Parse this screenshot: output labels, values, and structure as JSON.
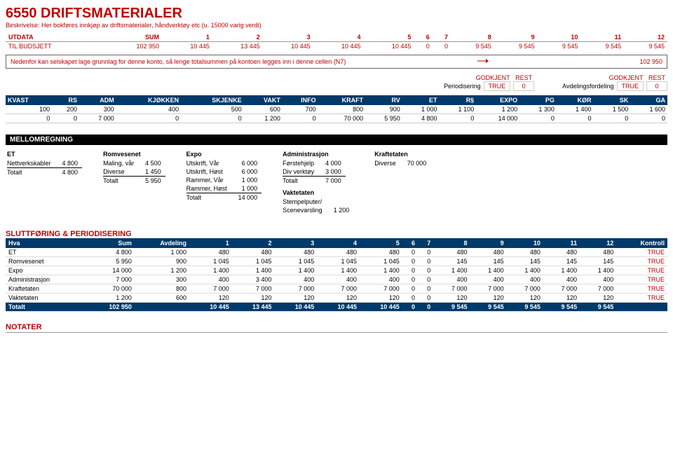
{
  "header": {
    "title": "6550 DRIFTSMATERIALER",
    "subtitle": "Beskrivelse: Her bokføres innkjøp av driftsmaterialer, håndverktøy etc (u. 15000 varig verdi)"
  },
  "utdata": {
    "heads": [
      "UTDATA",
      "SUM",
      "1",
      "2",
      "3",
      "4",
      "5",
      "6",
      "7",
      "8",
      "9",
      "10",
      "11",
      "12"
    ],
    "row_label": "TIL BUDSJETT",
    "cells": [
      "102 950",
      "10 445",
      "13 445",
      "10 445",
      "10 445",
      "10 445",
      "0",
      "0",
      "9 545",
      "9 545",
      "9 545",
      "9 545",
      "9 545"
    ]
  },
  "noteBox": {
    "text": "Nedenfor kan selskapet lage grunnlag for denne konto, så lenge totalsummen på kontoen legges inn i denne cellen (N7)",
    "value": "102 950"
  },
  "status": {
    "h1a": "GODKJENT",
    "h1b": "REST",
    "l1": "Periodisering",
    "v1a": "TRUE",
    "v1b": "0",
    "h2a": "GODKJENT",
    "h2b": "REST",
    "l2": "Avdelingsfordeling",
    "v2a": "TRUE",
    "v2b": "0"
  },
  "distTable": {
    "heads": [
      "KVAST",
      "RS",
      "ADM",
      "KJØKKEN",
      "SKJENKE",
      "VAKT",
      "INFO",
      "KRAFT",
      "RV",
      "ET",
      "R§",
      "EXPO",
      "PG",
      "KØR",
      "SK",
      "GA"
    ],
    "row1": [
      "100",
      "200",
      "300",
      "400",
      "500",
      "600",
      "700",
      "800",
      "900",
      "1 000",
      "1 100",
      "1 200",
      "1 300",
      "1 400",
      "1 500",
      "1 600"
    ],
    "row2": [
      "0",
      "0",
      "7 000",
      "0",
      "0",
      "1 200",
      "0",
      "70 000",
      "5 950",
      "4 800",
      "0",
      "14 000",
      "0",
      "0",
      "0",
      "0"
    ]
  },
  "mellom": {
    "title": "MELLOMREGNING",
    "cols": [
      {
        "head": "ET",
        "rows": [
          [
            "Nettverkskabler",
            "4 800"
          ]
        ],
        "total": [
          "Totalt",
          "4 800"
        ]
      },
      {
        "head": "Romvesenet",
        "rows": [
          [
            "Maling, vår",
            "4 500"
          ],
          [
            "Diverse",
            "1 450"
          ]
        ],
        "total": [
          "Totalt",
          "5 950"
        ]
      },
      {
        "head": "Expo",
        "rows": [
          [
            "Utskrift, Vår",
            "6 000"
          ],
          [
            "Utskrift, Høst",
            "6 000"
          ],
          [
            "Rammer, Vår",
            "1 000"
          ],
          [
            "Rammer, Høst",
            "1 000"
          ]
        ],
        "total": [
          "Totalt",
          "14 000"
        ]
      },
      {
        "head": "Administrasjon",
        "rows": [
          [
            "Førstehjelp",
            "4 000"
          ],
          [
            "Div verktøy",
            "3 000"
          ]
        ],
        "total": [
          "Totalt",
          "7 000"
        ],
        "extra_head": "Vaktetaten",
        "extra_rows": [
          [
            "Stempelputer/",
            ""
          ],
          [
            "Scenevarsling",
            "1 200"
          ]
        ]
      },
      {
        "head": "Kraftetaten",
        "rows": [
          [
            "Diverse",
            "70 000"
          ]
        ],
        "total": null
      }
    ]
  },
  "slutt": {
    "title": "SLUTTFØRING & PERIODISERING",
    "heads": [
      "Hva",
      "Sum",
      "Avdeling",
      "1",
      "2",
      "3",
      "4",
      "5",
      "6",
      "7",
      "8",
      "9",
      "10",
      "11",
      "12",
      "Kontroll"
    ],
    "rows": [
      [
        "ET",
        "4 800",
        "1 000",
        "480",
        "480",
        "480",
        "480",
        "480",
        "0",
        "0",
        "480",
        "480",
        "480",
        "480",
        "480",
        "TRUE"
      ],
      [
        "Romvesenet",
        "5 950",
        "900",
        "1 045",
        "1 045",
        "1 045",
        "1 045",
        "1 045",
        "0",
        "0",
        "145",
        "145",
        "145",
        "145",
        "145",
        "TRUE"
      ],
      [
        "Expo",
        "14 000",
        "1 200",
        "1 400",
        "1 400",
        "1 400",
        "1 400",
        "1 400",
        "0",
        "0",
        "1 400",
        "1 400",
        "1 400",
        "1 400",
        "1 400",
        "TRUE"
      ],
      [
        "Administrasjon",
        "7 000",
        "300",
        "400",
        "3 400",
        "400",
        "400",
        "400",
        "0",
        "0",
        "400",
        "400",
        "400",
        "400",
        "400",
        "TRUE"
      ],
      [
        "Kraftetaten",
        "70 000",
        "800",
        "7 000",
        "7 000",
        "7 000",
        "7 000",
        "7 000",
        "0",
        "0",
        "7 000",
        "7 000",
        "7 000",
        "7 000",
        "7 000",
        "TRUE"
      ],
      [
        "Vaktetaten",
        "1 200",
        "600",
        "120",
        "120",
        "120",
        "120",
        "120",
        "0",
        "0",
        "120",
        "120",
        "120",
        "120",
        "120",
        "TRUE"
      ]
    ],
    "total": [
      "Totalt",
      "102 950",
      "",
      "10 445",
      "13 445",
      "10 445",
      "10 445",
      "10 445",
      "0",
      "0",
      "9 545",
      "9 545",
      "9 545",
      "9 545",
      "9 545",
      ""
    ]
  },
  "notater": {
    "title": "NOTATER"
  },
  "colors": {
    "red": "#c00000",
    "navy": "#003a6a"
  }
}
